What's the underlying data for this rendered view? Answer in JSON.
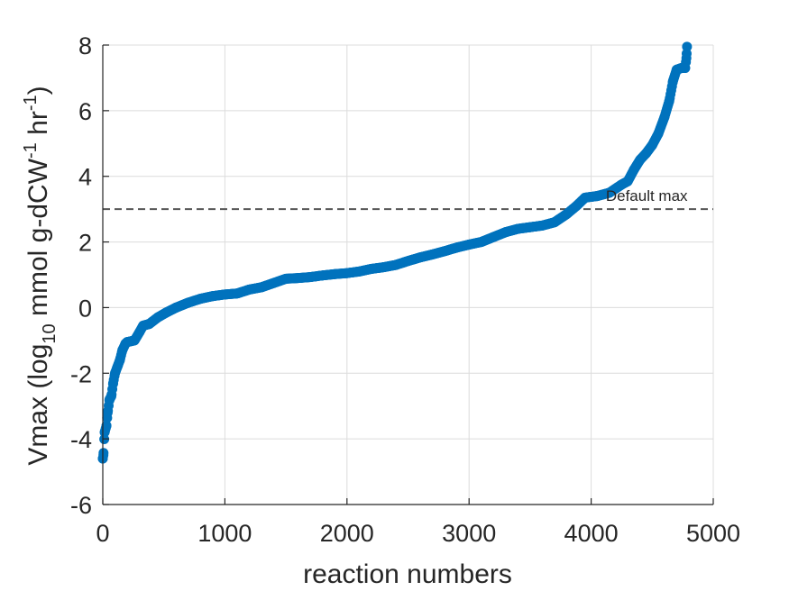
{
  "chart_data": {
    "type": "scatter",
    "xlabel": "reaction numbers",
    "ylabel": {
      "prefix": "Vmax (log",
      "sub": "10",
      "mid1": " mmol g-dCW",
      "sup1": "-1",
      "mid2": " hr",
      "sup2": "-1",
      "suffix": ")"
    },
    "xlim": [
      0,
      5000
    ],
    "ylim": [
      -6,
      8
    ],
    "xticks": [
      0,
      1000,
      2000,
      3000,
      4000,
      5000
    ],
    "yticks": [
      -6,
      -4,
      -2,
      0,
      2,
      4,
      6,
      8
    ],
    "grid": true,
    "marker_color": "#0072BD",
    "reference_line": {
      "y": 3,
      "style": "dashed",
      "color": "#555555",
      "label": "Default max"
    },
    "curve_points": [
      [
        0,
        -4.6
      ],
      [
        5,
        -4.5
      ],
      [
        15,
        -3.8
      ],
      [
        30,
        -3.6
      ],
      [
        40,
        -3.2
      ],
      [
        55,
        -2.8
      ],
      [
        70,
        -2.7
      ],
      [
        85,
        -2.3
      ],
      [
        100,
        -2.0
      ],
      [
        120,
        -1.8
      ],
      [
        140,
        -1.6
      ],
      [
        160,
        -1.3
      ],
      [
        185,
        -1.1
      ],
      [
        200,
        -1.05
      ],
      [
        260,
        -1.0
      ],
      [
        300,
        -0.75
      ],
      [
        330,
        -0.55
      ],
      [
        380,
        -0.5
      ],
      [
        450,
        -0.3
      ],
      [
        520,
        -0.15
      ],
      [
        600,
        0.0
      ],
      [
        700,
        0.15
      ],
      [
        800,
        0.27
      ],
      [
        900,
        0.35
      ],
      [
        1000,
        0.4
      ],
      [
        1100,
        0.43
      ],
      [
        1200,
        0.55
      ],
      [
        1300,
        0.62
      ],
      [
        1400,
        0.75
      ],
      [
        1500,
        0.88
      ],
      [
        1600,
        0.9
      ],
      [
        1700,
        0.93
      ],
      [
        1800,
        0.98
      ],
      [
        1900,
        1.02
      ],
      [
        2000,
        1.05
      ],
      [
        2100,
        1.1
      ],
      [
        2200,
        1.18
      ],
      [
        2300,
        1.23
      ],
      [
        2400,
        1.3
      ],
      [
        2500,
        1.42
      ],
      [
        2600,
        1.53
      ],
      [
        2700,
        1.62
      ],
      [
        2800,
        1.72
      ],
      [
        2900,
        1.83
      ],
      [
        3000,
        1.92
      ],
      [
        3100,
        2.0
      ],
      [
        3200,
        2.15
      ],
      [
        3300,
        2.3
      ],
      [
        3400,
        2.4
      ],
      [
        3500,
        2.45
      ],
      [
        3600,
        2.5
      ],
      [
        3700,
        2.6
      ],
      [
        3800,
        2.85
      ],
      [
        3880,
        3.1
      ],
      [
        3950,
        3.35
      ],
      [
        4050,
        3.4
      ],
      [
        4150,
        3.5
      ],
      [
        4250,
        3.75
      ],
      [
        4300,
        3.85
      ],
      [
        4350,
        4.2
      ],
      [
        4400,
        4.5
      ],
      [
        4450,
        4.7
      ],
      [
        4500,
        4.95
      ],
      [
        4550,
        5.3
      ],
      [
        4600,
        5.8
      ],
      [
        4640,
        6.3
      ],
      [
        4670,
        6.9
      ],
      [
        4700,
        7.25
      ],
      [
        4740,
        7.3
      ],
      [
        4770,
        7.3
      ],
      [
        4780,
        7.6
      ],
      [
        4785,
        7.95
      ]
    ]
  }
}
